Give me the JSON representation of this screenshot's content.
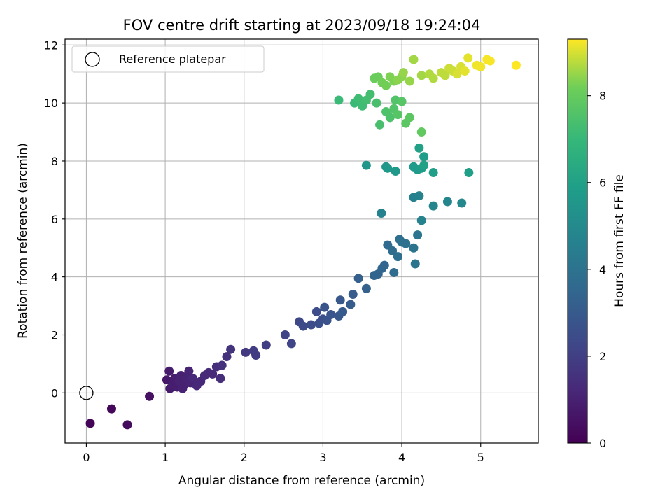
{
  "chart_data": {
    "type": "scatter",
    "title": "FOV centre drift starting at 2023/09/18 19:24:04",
    "xlabel": "Angular distance from reference (arcmin)",
    "ylabel": "Rotation from reference (arcmin)",
    "xlim": [
      -0.27,
      5.73
    ],
    "ylim": [
      -1.73,
      12.2
    ],
    "x_ticks": [
      0,
      1,
      2,
      3,
      4,
      5
    ],
    "y_ticks": [
      0,
      2,
      4,
      6,
      8,
      10,
      12
    ],
    "grid": true,
    "legend": {
      "placement": "top-left",
      "entries": [
        {
          "label": "Reference platepar",
          "marker": "open-circle"
        }
      ]
    },
    "reference_point": {
      "x": 0,
      "y": 0
    },
    "colorbar": {
      "label": "Hours from first FF file",
      "colormap": "viridis",
      "range": [
        0,
        9.3
      ],
      "ticks": [
        0,
        2,
        4,
        6,
        8
      ]
    },
    "series": [
      {
        "color_by": "hours",
        "x": [
          0.05,
          0.32,
          0.52,
          0.8,
          1.02,
          1.05,
          1.06,
          1.1,
          1.12,
          1.15,
          1.18,
          1.2,
          1.22,
          1.25,
          1.28,
          1.3,
          1.32,
          1.35,
          1.4,
          1.45,
          1.5,
          1.55,
          1.6,
          1.65,
          1.7,
          1.72,
          1.78,
          1.83,
          2.02,
          2.12,
          2.15,
          2.28,
          2.52,
          2.6,
          2.7,
          2.75,
          2.85,
          2.92,
          2.95,
          3.0,
          3.02,
          3.05,
          3.1,
          3.2,
          3.22,
          3.25,
          3.35,
          3.38,
          3.45,
          3.55,
          3.65,
          3.7,
          3.75,
          3.78,
          3.82,
          3.88,
          3.9,
          3.95,
          3.97,
          4.0,
          4.05,
          4.15,
          4.17,
          4.2,
          3.74,
          4.15,
          4.22,
          4.25,
          4.4,
          4.58,
          4.76,
          3.55,
          3.8,
          3.82,
          3.92,
          4.15,
          4.2,
          4.25,
          4.28,
          4.4,
          4.85,
          4.22,
          4.28,
          3.2,
          3.4,
          3.45,
          3.5,
          3.55,
          3.6,
          3.68,
          3.72,
          3.8,
          3.85,
          3.9,
          3.92,
          3.95,
          4.0,
          4.05,
          4.1,
          4.25,
          3.65,
          3.7,
          3.75,
          3.8,
          3.85,
          3.9,
          3.95,
          4.0,
          4.02,
          4.1,
          4.15,
          4.25,
          4.35,
          4.4,
          4.5,
          4.55,
          4.6,
          4.65,
          4.7,
          4.75,
          4.8,
          4.84,
          4.95,
          5.0,
          5.08,
          5.12,
          5.45
        ],
        "y": [
          -1.05,
          -0.55,
          -1.1,
          -0.12,
          0.45,
          0.75,
          0.15,
          0.3,
          0.5,
          0.2,
          0.4,
          0.6,
          0.15,
          0.3,
          0.5,
          0.75,
          0.35,
          0.5,
          0.25,
          0.4,
          0.6,
          0.7,
          0.65,
          0.9,
          0.5,
          0.95,
          1.25,
          1.5,
          1.4,
          1.45,
          1.3,
          1.65,
          2.0,
          1.7,
          2.45,
          2.3,
          2.35,
          2.8,
          2.4,
          2.55,
          2.95,
          2.5,
          2.7,
          2.65,
          3.2,
          2.8,
          3.05,
          3.4,
          3.95,
          3.6,
          4.05,
          4.1,
          4.3,
          4.4,
          5.1,
          4.9,
          4.15,
          4.7,
          5.3,
          5.2,
          5.15,
          5.0,
          4.45,
          5.45,
          6.2,
          6.75,
          6.8,
          5.95,
          6.45,
          6.6,
          6.55,
          7.85,
          7.8,
          7.75,
          7.65,
          7.8,
          7.7,
          7.75,
          8.15,
          7.6,
          7.6,
          8.45,
          7.85,
          10.1,
          10.0,
          10.15,
          9.9,
          10.1,
          10.3,
          10.0,
          9.25,
          9.7,
          9.5,
          9.8,
          10.1,
          9.6,
          10.05,
          9.3,
          9.5,
          9.0,
          10.85,
          10.9,
          10.7,
          10.6,
          10.9,
          10.75,
          10.8,
          10.9,
          11.05,
          10.75,
          11.5,
          10.95,
          11.0,
          10.85,
          11.05,
          10.95,
          11.2,
          11.1,
          11.0,
          11.25,
          11.1,
          11.55,
          11.3,
          11.25,
          11.5,
          11.45,
          11.3
        ],
        "hours": [
          0.1,
          0.2,
          0.3,
          0.5,
          0.7,
          0.8,
          0.8,
          0.9,
          0.9,
          0.9,
          1.0,
          1.0,
          1.0,
          1.0,
          1.1,
          1.1,
          1.1,
          1.2,
          1.2,
          1.2,
          1.3,
          1.3,
          1.3,
          1.4,
          1.4,
          1.5,
          1.5,
          1.6,
          1.8,
          1.9,
          1.9,
          2.0,
          2.2,
          2.2,
          2.3,
          2.4,
          2.5,
          2.5,
          2.6,
          2.6,
          2.7,
          2.7,
          2.8,
          2.9,
          2.9,
          3.0,
          3.1,
          3.1,
          3.2,
          3.3,
          3.4,
          3.4,
          3.5,
          3.5,
          3.6,
          3.7,
          3.7,
          3.8,
          3.8,
          3.9,
          3.9,
          4.0,
          4.0,
          4.1,
          4.6,
          4.6,
          4.7,
          4.7,
          4.8,
          4.8,
          4.9,
          5.5,
          5.5,
          5.6,
          5.6,
          5.7,
          5.7,
          5.8,
          5.8,
          5.9,
          5.9,
          6.0,
          6.0,
          7.1,
          7.1,
          7.2,
          7.2,
          7.3,
          7.3,
          7.4,
          7.4,
          7.5,
          7.5,
          7.6,
          7.6,
          7.7,
          7.7,
          7.8,
          7.8,
          7.9,
          8.1,
          8.1,
          8.2,
          8.2,
          8.3,
          8.3,
          8.4,
          8.4,
          8.5,
          8.5,
          8.6,
          8.6,
          8.7,
          8.7,
          8.8,
          8.8,
          8.9,
          8.9,
          9.0,
          9.0,
          9.1,
          9.1,
          9.2,
          9.2,
          9.25,
          9.25,
          9.3
        ]
      }
    ]
  }
}
